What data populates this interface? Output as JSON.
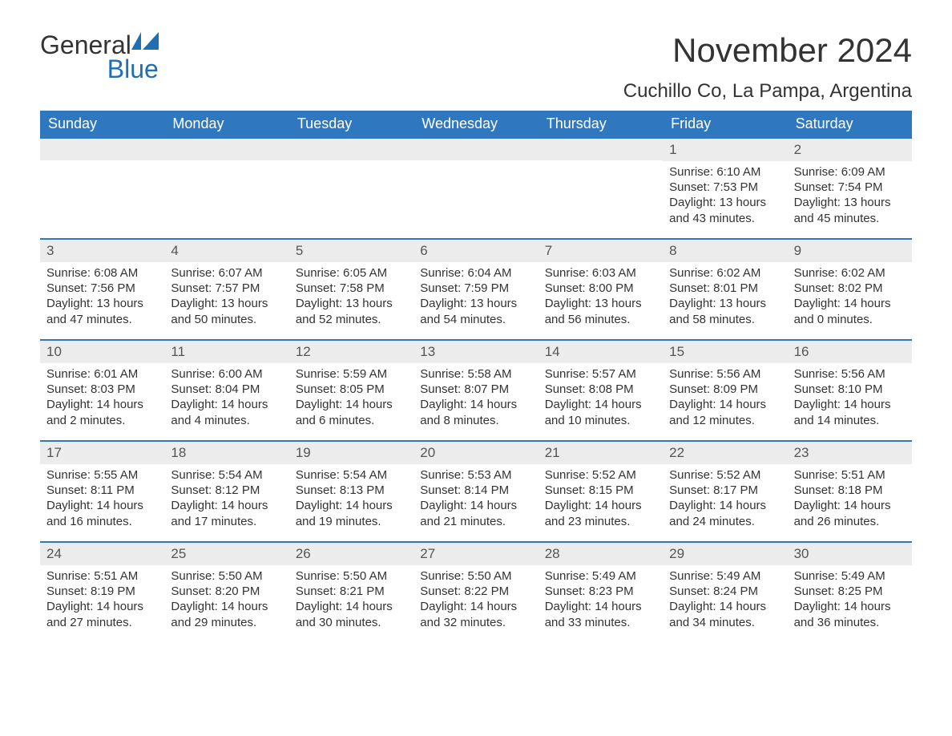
{
  "colors": {
    "header_bg": "#2f78bf",
    "header_text": "#ffffff",
    "daynum_bg": "#ececec",
    "daynum_border": "#2f78bf",
    "body_text": "#333333",
    "logo_blue": "#1f6fb2",
    "page_bg": "#ffffff"
  },
  "typography": {
    "title_fontsize": 42,
    "location_fontsize": 24,
    "dow_fontsize": 18,
    "daynum_fontsize": 17,
    "body_fontsize": 15,
    "logo_fontsize": 32
  },
  "logo": {
    "word1": "General",
    "word2": "Blue"
  },
  "title": "November 2024",
  "location": "Cuchillo Co, La Pampa, Argentina",
  "days_of_week": [
    "Sunday",
    "Monday",
    "Tuesday",
    "Wednesday",
    "Thursday",
    "Friday",
    "Saturday"
  ],
  "calendar": {
    "leading_blanks": 5,
    "days": [
      {
        "n": "1",
        "sunrise": "Sunrise: 6:10 AM",
        "sunset": "Sunset: 7:53 PM",
        "day1": "Daylight: 13 hours",
        "day2": "and 43 minutes."
      },
      {
        "n": "2",
        "sunrise": "Sunrise: 6:09 AM",
        "sunset": "Sunset: 7:54 PM",
        "day1": "Daylight: 13 hours",
        "day2": "and 45 minutes."
      },
      {
        "n": "3",
        "sunrise": "Sunrise: 6:08 AM",
        "sunset": "Sunset: 7:56 PM",
        "day1": "Daylight: 13 hours",
        "day2": "and 47 minutes."
      },
      {
        "n": "4",
        "sunrise": "Sunrise: 6:07 AM",
        "sunset": "Sunset: 7:57 PM",
        "day1": "Daylight: 13 hours",
        "day2": "and 50 minutes."
      },
      {
        "n": "5",
        "sunrise": "Sunrise: 6:05 AM",
        "sunset": "Sunset: 7:58 PM",
        "day1": "Daylight: 13 hours",
        "day2": "and 52 minutes."
      },
      {
        "n": "6",
        "sunrise": "Sunrise: 6:04 AM",
        "sunset": "Sunset: 7:59 PM",
        "day1": "Daylight: 13 hours",
        "day2": "and 54 minutes."
      },
      {
        "n": "7",
        "sunrise": "Sunrise: 6:03 AM",
        "sunset": "Sunset: 8:00 PM",
        "day1": "Daylight: 13 hours",
        "day2": "and 56 minutes."
      },
      {
        "n": "8",
        "sunrise": "Sunrise: 6:02 AM",
        "sunset": "Sunset: 8:01 PM",
        "day1": "Daylight: 13 hours",
        "day2": "and 58 minutes."
      },
      {
        "n": "9",
        "sunrise": "Sunrise: 6:02 AM",
        "sunset": "Sunset: 8:02 PM",
        "day1": "Daylight: 14 hours",
        "day2": "and 0 minutes."
      },
      {
        "n": "10",
        "sunrise": "Sunrise: 6:01 AM",
        "sunset": "Sunset: 8:03 PM",
        "day1": "Daylight: 14 hours",
        "day2": "and 2 minutes."
      },
      {
        "n": "11",
        "sunrise": "Sunrise: 6:00 AM",
        "sunset": "Sunset: 8:04 PM",
        "day1": "Daylight: 14 hours",
        "day2": "and 4 minutes."
      },
      {
        "n": "12",
        "sunrise": "Sunrise: 5:59 AM",
        "sunset": "Sunset: 8:05 PM",
        "day1": "Daylight: 14 hours",
        "day2": "and 6 minutes."
      },
      {
        "n": "13",
        "sunrise": "Sunrise: 5:58 AM",
        "sunset": "Sunset: 8:07 PM",
        "day1": "Daylight: 14 hours",
        "day2": "and 8 minutes."
      },
      {
        "n": "14",
        "sunrise": "Sunrise: 5:57 AM",
        "sunset": "Sunset: 8:08 PM",
        "day1": "Daylight: 14 hours",
        "day2": "and 10 minutes."
      },
      {
        "n": "15",
        "sunrise": "Sunrise: 5:56 AM",
        "sunset": "Sunset: 8:09 PM",
        "day1": "Daylight: 14 hours",
        "day2": "and 12 minutes."
      },
      {
        "n": "16",
        "sunrise": "Sunrise: 5:56 AM",
        "sunset": "Sunset: 8:10 PM",
        "day1": "Daylight: 14 hours",
        "day2": "and 14 minutes."
      },
      {
        "n": "17",
        "sunrise": "Sunrise: 5:55 AM",
        "sunset": "Sunset: 8:11 PM",
        "day1": "Daylight: 14 hours",
        "day2": "and 16 minutes."
      },
      {
        "n": "18",
        "sunrise": "Sunrise: 5:54 AM",
        "sunset": "Sunset: 8:12 PM",
        "day1": "Daylight: 14 hours",
        "day2": "and 17 minutes."
      },
      {
        "n": "19",
        "sunrise": "Sunrise: 5:54 AM",
        "sunset": "Sunset: 8:13 PM",
        "day1": "Daylight: 14 hours",
        "day2": "and 19 minutes."
      },
      {
        "n": "20",
        "sunrise": "Sunrise: 5:53 AM",
        "sunset": "Sunset: 8:14 PM",
        "day1": "Daylight: 14 hours",
        "day2": "and 21 minutes."
      },
      {
        "n": "21",
        "sunrise": "Sunrise: 5:52 AM",
        "sunset": "Sunset: 8:15 PM",
        "day1": "Daylight: 14 hours",
        "day2": "and 23 minutes."
      },
      {
        "n": "22",
        "sunrise": "Sunrise: 5:52 AM",
        "sunset": "Sunset: 8:17 PM",
        "day1": "Daylight: 14 hours",
        "day2": "and 24 minutes."
      },
      {
        "n": "23",
        "sunrise": "Sunrise: 5:51 AM",
        "sunset": "Sunset: 8:18 PM",
        "day1": "Daylight: 14 hours",
        "day2": "and 26 minutes."
      },
      {
        "n": "24",
        "sunrise": "Sunrise: 5:51 AM",
        "sunset": "Sunset: 8:19 PM",
        "day1": "Daylight: 14 hours",
        "day2": "and 27 minutes."
      },
      {
        "n": "25",
        "sunrise": "Sunrise: 5:50 AM",
        "sunset": "Sunset: 8:20 PM",
        "day1": "Daylight: 14 hours",
        "day2": "and 29 minutes."
      },
      {
        "n": "26",
        "sunrise": "Sunrise: 5:50 AM",
        "sunset": "Sunset: 8:21 PM",
        "day1": "Daylight: 14 hours",
        "day2": "and 30 minutes."
      },
      {
        "n": "27",
        "sunrise": "Sunrise: 5:50 AM",
        "sunset": "Sunset: 8:22 PM",
        "day1": "Daylight: 14 hours",
        "day2": "and 32 minutes."
      },
      {
        "n": "28",
        "sunrise": "Sunrise: 5:49 AM",
        "sunset": "Sunset: 8:23 PM",
        "day1": "Daylight: 14 hours",
        "day2": "and 33 minutes."
      },
      {
        "n": "29",
        "sunrise": "Sunrise: 5:49 AM",
        "sunset": "Sunset: 8:24 PM",
        "day1": "Daylight: 14 hours",
        "day2": "and 34 minutes."
      },
      {
        "n": "30",
        "sunrise": "Sunrise: 5:49 AM",
        "sunset": "Sunset: 8:25 PM",
        "day1": "Daylight: 14 hours",
        "day2": "and 36 minutes."
      }
    ]
  }
}
